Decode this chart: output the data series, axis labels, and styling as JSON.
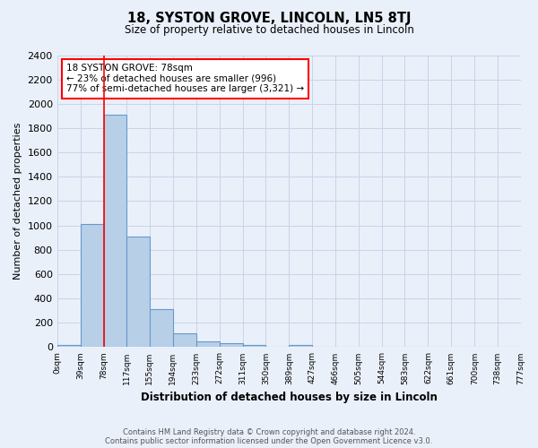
{
  "title_line1": "18, SYSTON GROVE, LINCOLN, LN5 8TJ",
  "title_line2": "Size of property relative to detached houses in Lincoln",
  "xlabel": "Distribution of detached houses by size in Lincoln",
  "ylabel": "Number of detached properties",
  "bins": [
    0,
    39,
    78,
    117,
    155,
    194,
    233,
    272,
    311,
    350,
    389,
    427,
    466,
    505,
    544,
    583,
    622,
    661,
    700,
    738,
    777
  ],
  "bar_heights": [
    20,
    1010,
    1910,
    910,
    315,
    115,
    50,
    30,
    20,
    0,
    20,
    0,
    0,
    0,
    0,
    0,
    0,
    0,
    0,
    0
  ],
  "bar_color": "#b8cfe8",
  "bar_edge_color": "#6699cc",
  "bar_edge_width": 0.8,
  "red_line_x": 78,
  "ylim": [
    0,
    2400
  ],
  "yticks": [
    0,
    200,
    400,
    600,
    800,
    1000,
    1200,
    1400,
    1600,
    1800,
    2000,
    2200,
    2400
  ],
  "xtick_labels": [
    "0sqm",
    "39sqm",
    "78sqm",
    "117sqm",
    "155sqm",
    "194sqm",
    "233sqm",
    "272sqm",
    "311sqm",
    "350sqm",
    "389sqm",
    "427sqm",
    "466sqm",
    "505sqm",
    "544sqm",
    "583sqm",
    "622sqm",
    "661sqm",
    "700sqm",
    "738sqm",
    "777sqm"
  ],
  "annotation_text": "18 SYSTON GROVE: 78sqm\n← 23% of detached houses are smaller (996)\n77% of semi-detached houses are larger (3,321) →",
  "annotation_box_color": "white",
  "annotation_box_edge": "red",
  "grid_color": "#c8d4e8",
  "bg_color": "#eaf0fa",
  "footnote1": "Contains HM Land Registry data © Crown copyright and database right 2024.",
  "footnote2": "Contains public sector information licensed under the Open Government Licence v3.0."
}
